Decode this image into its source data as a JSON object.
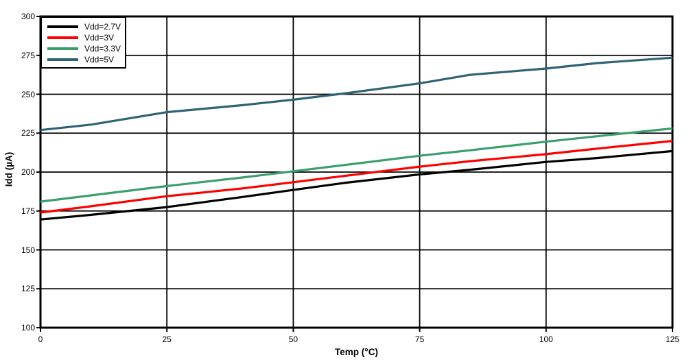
{
  "chart_data": {
    "type": "line",
    "title": "",
    "xlabel": "Temp (°C)",
    "ylabel": "Idd (µA)",
    "xlim": [
      0,
      125
    ],
    "ylim": [
      100,
      300
    ],
    "x_ticks": [
      "0",
      "25",
      "50",
      "75",
      "100",
      "125"
    ],
    "y_ticks": [
      "100",
      "125",
      "150",
      "175",
      "200",
      "225",
      "250",
      "275",
      "300"
    ],
    "grid": "solid black, horizontal and vertical",
    "legend_position": "top-left inside plot",
    "axis_color": "#000000",
    "x": [
      0,
      10,
      25,
      40,
      50,
      60,
      75,
      85,
      100,
      110,
      125
    ],
    "series": [
      {
        "name": "Vdd=2.7V",
        "color": "#000000",
        "values": [
          169.5,
          172.5,
          177.5,
          184,
          188.5,
          193,
          198.5,
          201.5,
          206.5,
          209,
          213.5
        ]
      },
      {
        "name": "Vdd=3V",
        "color": "#fe0000",
        "values": [
          174,
          178,
          184.5,
          189.5,
          193.5,
          197.5,
          203.5,
          207,
          211.5,
          215,
          220
        ]
      },
      {
        "name": "Vdd=3.3V",
        "color": "#3a9e6e",
        "values": [
          181,
          185,
          191,
          196.5,
          200.5,
          204.5,
          210.5,
          214,
          219.5,
          223,
          228
        ]
      },
      {
        "name": "Vdd=5V",
        "color": "#2e6375",
        "values": [
          227,
          230.5,
          238.5,
          243,
          246.5,
          250.5,
          257,
          262.5,
          266.5,
          270,
          273.5
        ]
      }
    ]
  }
}
